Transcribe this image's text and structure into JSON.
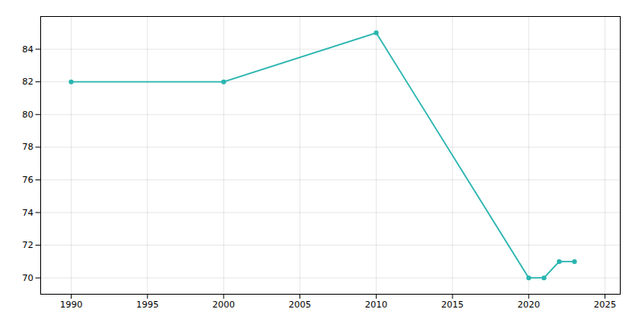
{
  "chart_data": {
    "type": "line",
    "x": [
      1990,
      2000,
      2010,
      2020,
      2021,
      2022,
      2023
    ],
    "values": [
      82,
      82,
      85,
      70,
      70,
      71,
      71
    ],
    "color": "#2ab5b0",
    "marker": "circle",
    "xlim": [
      1988,
      2026
    ],
    "ylim": [
      69.0,
      86.0
    ],
    "xticks": [
      1990,
      1995,
      2000,
      2005,
      2010,
      2015,
      2020,
      2025
    ],
    "yticks": [
      70,
      72,
      74,
      76,
      78,
      80,
      82,
      84
    ],
    "grid": true
  }
}
